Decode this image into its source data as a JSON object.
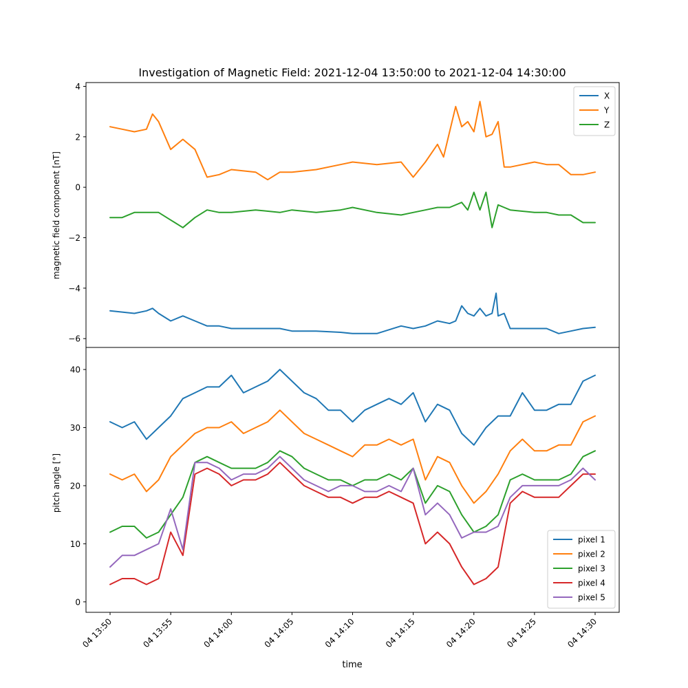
{
  "chart_data": [
    {
      "type": "line",
      "title": "Investigation of Magnetic Field: 2021-12-04 13:50:00 to 2021-12-04 14:30:00",
      "ylabel": "magnetic field component [nT]",
      "ylim": [
        -6.35,
        4.15
      ],
      "yticks": [
        4,
        2,
        0,
        -2,
        -4,
        -6
      ],
      "ytick_labels": [
        "4",
        "2",
        "0",
        "−2",
        "−4",
        "−6"
      ],
      "legend_position": "upper right",
      "grid": false,
      "series": [
        {
          "name": "X",
          "color": "#1f77b4",
          "x": [
            "13:50",
            "13:52",
            "13:53",
            "13:53:30",
            "13:54",
            "13:55",
            "13:56",
            "13:57",
            "13:58",
            "13:59",
            "14:00",
            "14:02",
            "14:04",
            "14:05",
            "14:07",
            "14:09",
            "14:10",
            "14:12",
            "14:14",
            "14:15",
            "14:16",
            "14:17",
            "14:18",
            "14:18:30",
            "14:19",
            "14:19:30",
            "14:20",
            "14:20:30",
            "14:21",
            "14:21:30",
            "14:21:50",
            "14:22",
            "14:22:30",
            "14:23",
            "14:25",
            "14:26",
            "14:27",
            "14:28",
            "14:29",
            "14:30"
          ],
          "values": [
            -4.9,
            -5.0,
            -4.9,
            -4.8,
            -5.0,
            -5.3,
            -5.1,
            -5.3,
            -5.5,
            -5.5,
            -5.6,
            -5.6,
            -5.6,
            -5.7,
            -5.7,
            -5.75,
            -5.8,
            -5.8,
            -5.5,
            -5.6,
            -5.5,
            -5.3,
            -5.4,
            -5.3,
            -4.7,
            -5.0,
            -5.1,
            -4.8,
            -5.1,
            -5.0,
            -4.2,
            -5.1,
            -5.0,
            -5.6,
            -5.6,
            -5.6,
            -5.8,
            -5.7,
            -5.6,
            -5.55
          ]
        },
        {
          "name": "Y",
          "color": "#ff7f0e",
          "x": [
            "13:50",
            "13:51",
            "13:52",
            "13:53",
            "13:53:30",
            "13:54",
            "13:55",
            "13:56",
            "13:57",
            "13:58",
            "13:59",
            "14:00",
            "14:02",
            "14:03",
            "14:04",
            "14:05",
            "14:07",
            "14:09",
            "14:10",
            "14:12",
            "14:14",
            "14:15",
            "14:16",
            "14:17",
            "14:17:30",
            "14:18",
            "14:18:30",
            "14:19",
            "14:19:30",
            "14:20",
            "14:20:30",
            "14:21",
            "14:21:30",
            "14:22",
            "14:22:30",
            "14:23",
            "14:25",
            "14:26",
            "14:27",
            "14:28",
            "14:29",
            "14:30"
          ],
          "values": [
            2.4,
            2.3,
            2.2,
            2.3,
            2.9,
            2.6,
            1.5,
            1.9,
            1.5,
            0.4,
            0.5,
            0.7,
            0.6,
            0.3,
            0.6,
            0.6,
            0.7,
            0.9,
            1.0,
            0.9,
            1.0,
            0.4,
            1.0,
            1.7,
            1.2,
            2.2,
            3.2,
            2.4,
            2.6,
            2.2,
            3.4,
            2.0,
            2.1,
            2.6,
            0.8,
            0.8,
            1.0,
            0.9,
            0.9,
            0.5,
            0.5,
            0.6
          ]
        },
        {
          "name": "Z",
          "color": "#2ca02c",
          "x": [
            "13:50",
            "13:51",
            "13:52",
            "13:53",
            "13:54",
            "13:55",
            "13:56",
            "13:57",
            "13:58",
            "13:59",
            "14:00",
            "14:02",
            "14:04",
            "14:05",
            "14:07",
            "14:09",
            "14:10",
            "14:12",
            "14:14",
            "14:15",
            "14:16",
            "14:17",
            "14:18",
            "14:19",
            "14:19:30",
            "14:20",
            "14:20:30",
            "14:21",
            "14:21:30",
            "14:22",
            "14:22:30",
            "14:23",
            "14:25",
            "14:26",
            "14:27",
            "14:28",
            "14:29",
            "14:30"
          ],
          "values": [
            -1.2,
            -1.2,
            -1.0,
            -1.0,
            -1.0,
            -1.3,
            -1.6,
            -1.2,
            -0.9,
            -1.0,
            -1.0,
            -0.9,
            -1.0,
            -0.9,
            -1.0,
            -0.9,
            -0.8,
            -1.0,
            -1.1,
            -1.0,
            -0.9,
            -0.8,
            -0.8,
            -0.6,
            -0.9,
            -0.2,
            -0.9,
            -0.2,
            -1.6,
            -0.7,
            -0.8,
            -0.9,
            -1.0,
            -1.0,
            -1.1,
            -1.1,
            -1.4,
            -1.4
          ]
        }
      ]
    },
    {
      "type": "line",
      "xlabel": "time",
      "ylabel": "pitch angle [°]",
      "ylim": [
        -1.8,
        43.8
      ],
      "yticks": [
        0,
        10,
        20,
        30,
        40
      ],
      "ytick_labels": [
        "0",
        "10",
        "20",
        "30",
        "40"
      ],
      "xticks": [
        "13:50",
        "13:55",
        "14:00",
        "14:05",
        "14:10",
        "14:15",
        "14:20",
        "14:25",
        "14:30"
      ],
      "xtick_labels": [
        "04 13:50",
        "04 13:55",
        "04 14:00",
        "04 14:05",
        "04 14:10",
        "04 14:15",
        "04 14:20",
        "04 14:25",
        "04 14:30"
      ],
      "legend_position": "lower right",
      "grid": false,
      "series": [
        {
          "name": "pixel 1",
          "color": "#1f77b4",
          "x": [
            "13:50",
            "13:51",
            "13:52",
            "13:53",
            "13:54",
            "13:55",
            "13:56",
            "13:57",
            "13:58",
            "13:59",
            "14:00",
            "14:01",
            "14:02",
            "14:03",
            "14:04",
            "14:05",
            "14:06",
            "14:07",
            "14:08",
            "14:09",
            "14:10",
            "14:11",
            "14:12",
            "14:13",
            "14:14",
            "14:15",
            "14:16",
            "14:17",
            "14:18",
            "14:19",
            "14:20",
            "14:21",
            "14:22",
            "14:23",
            "14:24",
            "14:25",
            "14:26",
            "14:27",
            "14:28",
            "14:29",
            "14:30"
          ],
          "values": [
            31,
            30,
            31,
            28,
            30,
            32,
            35,
            36,
            37,
            37,
            39,
            36,
            37,
            38,
            40,
            38,
            36,
            35,
            33,
            33,
            31,
            33,
            34,
            35,
            34,
            36,
            31,
            34,
            33,
            29,
            27,
            30,
            32,
            32,
            36,
            33,
            33,
            34,
            34,
            38,
            39
          ]
        },
        {
          "name": "pixel 2",
          "color": "#ff7f0e",
          "x": [
            "13:50",
            "13:51",
            "13:52",
            "13:53",
            "13:54",
            "13:55",
            "13:56",
            "13:57",
            "13:58",
            "13:59",
            "14:00",
            "14:01",
            "14:02",
            "14:03",
            "14:04",
            "14:05",
            "14:06",
            "14:07",
            "14:08",
            "14:09",
            "14:10",
            "14:11",
            "14:12",
            "14:13",
            "14:14",
            "14:15",
            "14:16",
            "14:17",
            "14:18",
            "14:19",
            "14:20",
            "14:21",
            "14:22",
            "14:23",
            "14:24",
            "14:25",
            "14:26",
            "14:27",
            "14:28",
            "14:29",
            "14:30"
          ],
          "values": [
            22,
            21,
            22,
            19,
            21,
            25,
            27,
            29,
            30,
            30,
            31,
            29,
            30,
            31,
            33,
            31,
            29,
            28,
            27,
            26,
            25,
            27,
            27,
            28,
            27,
            28,
            21,
            25,
            24,
            20,
            17,
            19,
            22,
            26,
            28,
            26,
            26,
            27,
            27,
            31,
            32
          ]
        },
        {
          "name": "pixel 3",
          "color": "#2ca02c",
          "x": [
            "13:50",
            "13:51",
            "13:52",
            "13:53",
            "13:54",
            "13:55",
            "13:56",
            "13:57",
            "13:58",
            "13:59",
            "14:00",
            "14:01",
            "14:02",
            "14:03",
            "14:04",
            "14:05",
            "14:06",
            "14:07",
            "14:08",
            "14:09",
            "14:10",
            "14:11",
            "14:12",
            "14:13",
            "14:14",
            "14:15",
            "14:16",
            "14:17",
            "14:18",
            "14:19",
            "14:20",
            "14:21",
            "14:22",
            "14:23",
            "14:24",
            "14:25",
            "14:26",
            "14:27",
            "14:28",
            "14:29",
            "14:30"
          ],
          "values": [
            12,
            13,
            13,
            11,
            12,
            15,
            18,
            24,
            25,
            24,
            23,
            23,
            23,
            24,
            26,
            25,
            23,
            22,
            21,
            21,
            20,
            21,
            21,
            22,
            21,
            23,
            17,
            20,
            19,
            15,
            12,
            13,
            15,
            21,
            22,
            21,
            21,
            21,
            22,
            25,
            26
          ]
        },
        {
          "name": "pixel 4",
          "color": "#d62728",
          "x": [
            "13:50",
            "13:51",
            "13:52",
            "13:53",
            "13:54",
            "13:55",
            "13:56",
            "13:57",
            "13:58",
            "13:59",
            "14:00",
            "14:01",
            "14:02",
            "14:03",
            "14:04",
            "14:05",
            "14:06",
            "14:07",
            "14:08",
            "14:09",
            "14:10",
            "14:11",
            "14:12",
            "14:13",
            "14:14",
            "14:15",
            "14:16",
            "14:17",
            "14:18",
            "14:19",
            "14:20",
            "14:21",
            "14:22",
            "14:23",
            "14:24",
            "14:25",
            "14:26",
            "14:27",
            "14:28",
            "14:29",
            "14:30"
          ],
          "values": [
            3,
            4,
            4,
            3,
            4,
            12,
            8,
            22,
            23,
            22,
            20,
            21,
            21,
            22,
            24,
            22,
            20,
            19,
            18,
            18,
            17,
            18,
            18,
            19,
            18,
            17,
            10,
            12,
            10,
            6,
            3,
            4,
            6,
            17,
            19,
            18,
            18,
            18,
            20,
            22,
            22
          ]
        },
        {
          "name": "pixel 5",
          "color": "#9467bd",
          "x": [
            "13:50",
            "13:51",
            "13:52",
            "13:53",
            "13:54",
            "13:55",
            "13:56",
            "13:57",
            "13:58",
            "13:59",
            "14:00",
            "14:01",
            "14:02",
            "14:03",
            "14:04",
            "14:05",
            "14:06",
            "14:07",
            "14:08",
            "14:09",
            "14:10",
            "14:11",
            "14:12",
            "14:13",
            "14:14",
            "14:15",
            "14:16",
            "14:17",
            "14:18",
            "14:19",
            "14:20",
            "14:21",
            "14:22",
            "14:23",
            "14:24",
            "14:25",
            "14:26",
            "14:27",
            "14:28",
            "14:29",
            "14:30"
          ],
          "values": [
            6,
            8,
            8,
            9,
            10,
            16,
            9,
            24,
            24,
            23,
            21,
            22,
            22,
            23,
            25,
            23,
            21,
            20,
            19,
            20,
            20,
            19,
            19,
            20,
            19,
            23,
            15,
            17,
            15,
            11,
            12,
            12,
            13,
            18,
            20,
            20,
            20,
            20,
            21,
            23,
            21
          ]
        }
      ]
    }
  ]
}
